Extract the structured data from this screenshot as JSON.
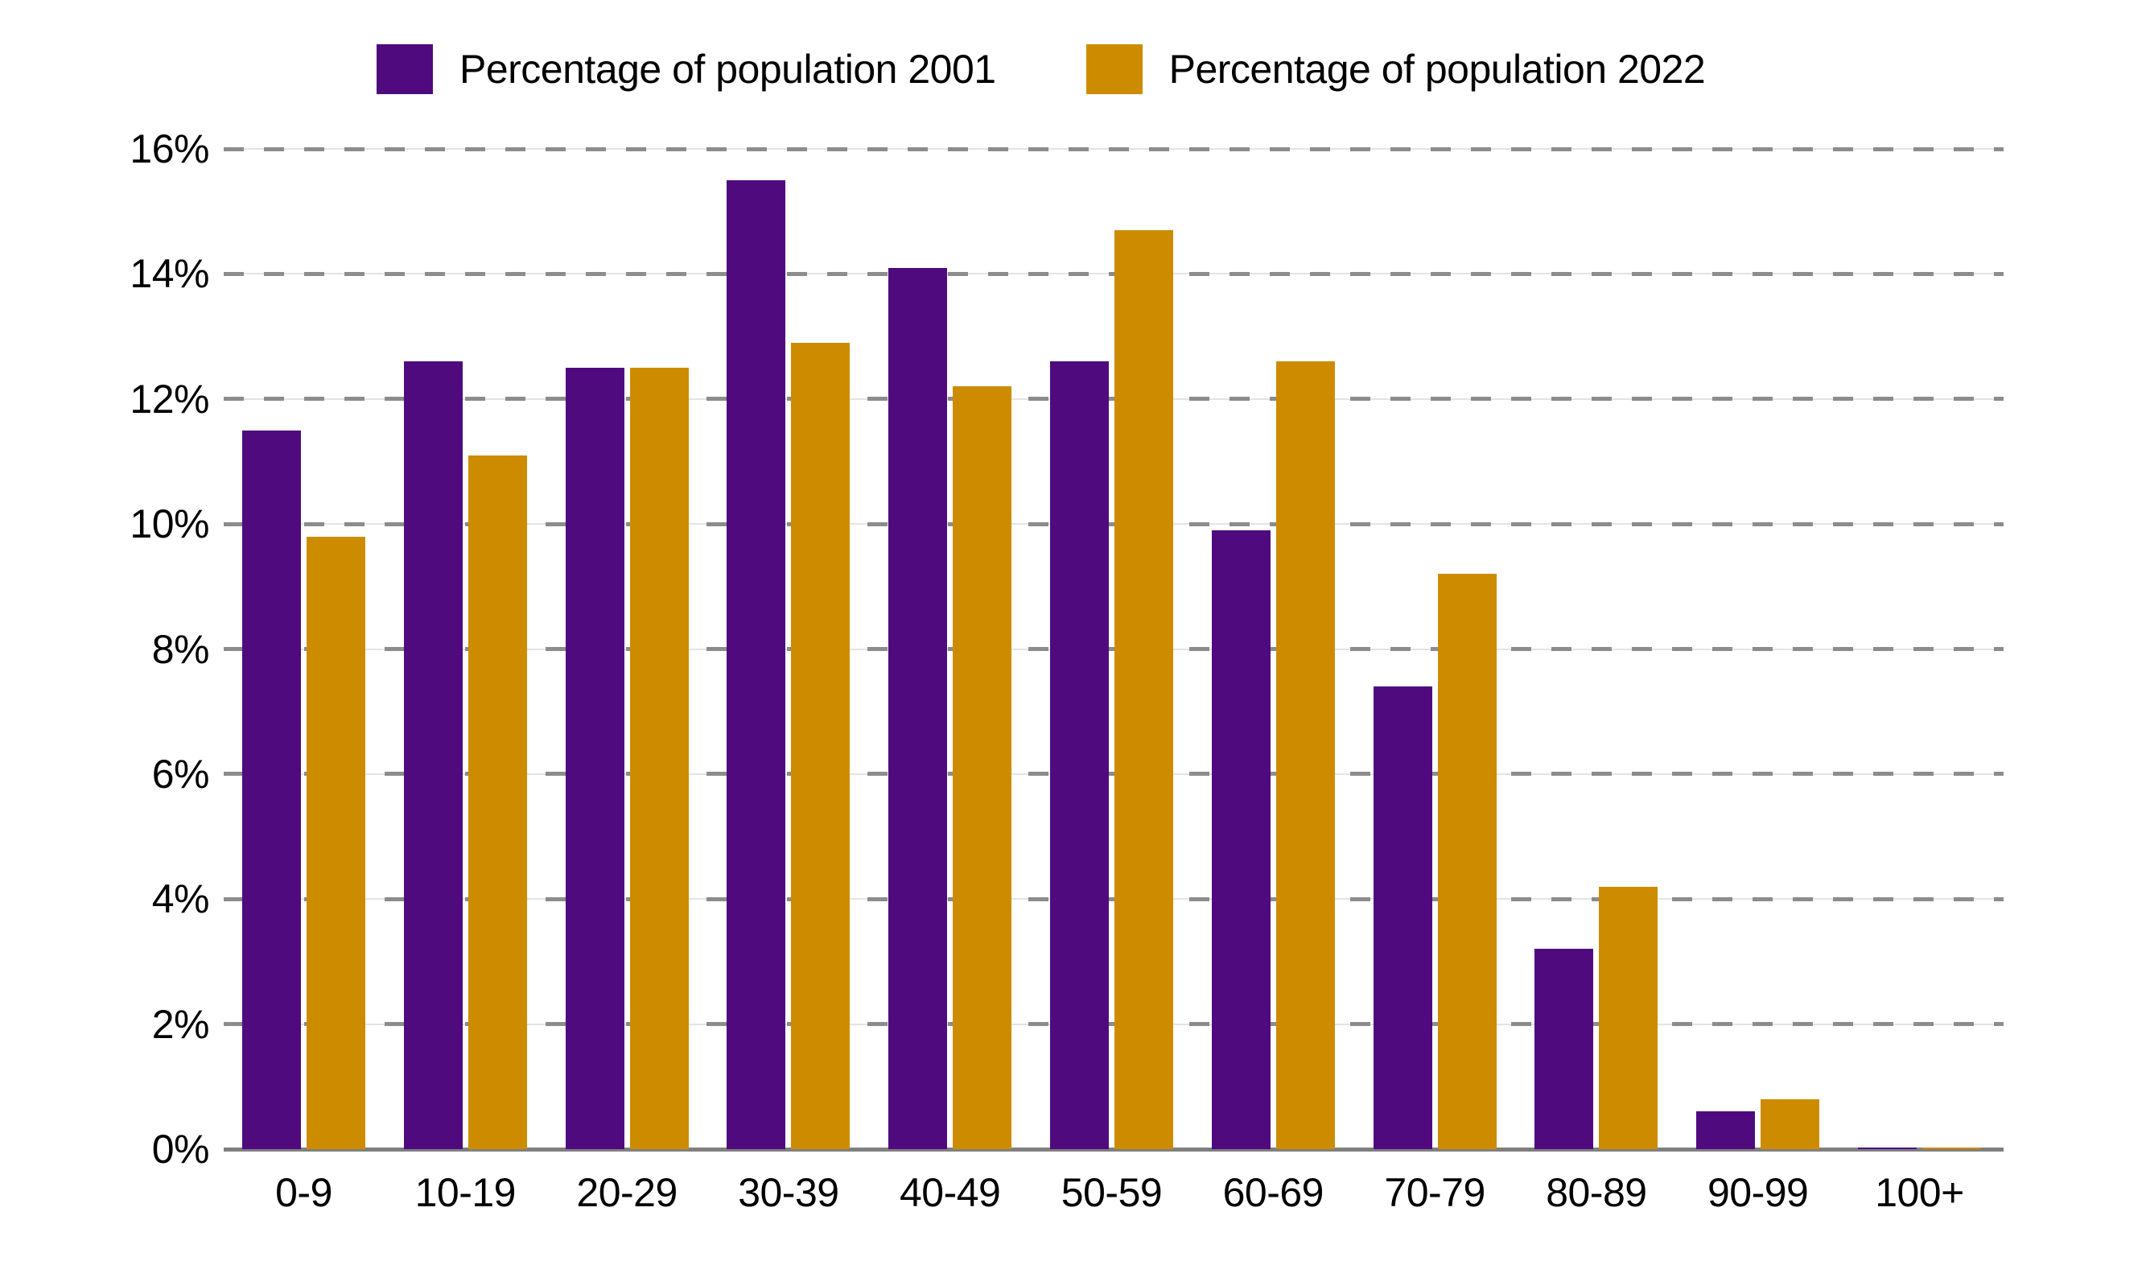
{
  "chart_data": {
    "type": "bar",
    "title": "",
    "categories": [
      "0-9",
      "10-19",
      "20-29",
      "30-39",
      "40-49",
      "50-59",
      "60-69",
      "70-79",
      "80-89",
      "90-99",
      "100+"
    ],
    "series": [
      {
        "name": "Percentage of population 2001",
        "color": "#4F0A7E",
        "values": [
          11.5,
          12.6,
          12.5,
          15.5,
          14.1,
          12.6,
          9.9,
          7.4,
          3.2,
          0.6,
          0.02
        ]
      },
      {
        "name": "Percentage of population 2022",
        "color": "#CD8C00",
        "values": [
          9.8,
          11.1,
          12.5,
          12.9,
          12.2,
          14.7,
          12.6,
          9.2,
          4.2,
          0.8,
          0.03
        ]
      }
    ],
    "y_axis": {
      "ticks": [
        "0%",
        "2%",
        "4%",
        "6%",
        "8%",
        "10%",
        "12%",
        "14%",
        "16%"
      ],
      "min": 0,
      "max": 16,
      "step": 2
    },
    "x_axis": {
      "tick_labels": [
        "0-9",
        "10-19",
        "20-29",
        "30-39",
        "40-49",
        "50-59",
        "60-69",
        "70-79",
        "80-89",
        "90-99",
        "100+"
      ]
    },
    "grid": {
      "style": "dashed-horizontal",
      "dash_color": "#8C8C8C",
      "base_color": "#E3E3E3"
    },
    "axis_line_color": "#7F7F7F",
    "text_color": "#000000",
    "legend_position": "top"
  }
}
